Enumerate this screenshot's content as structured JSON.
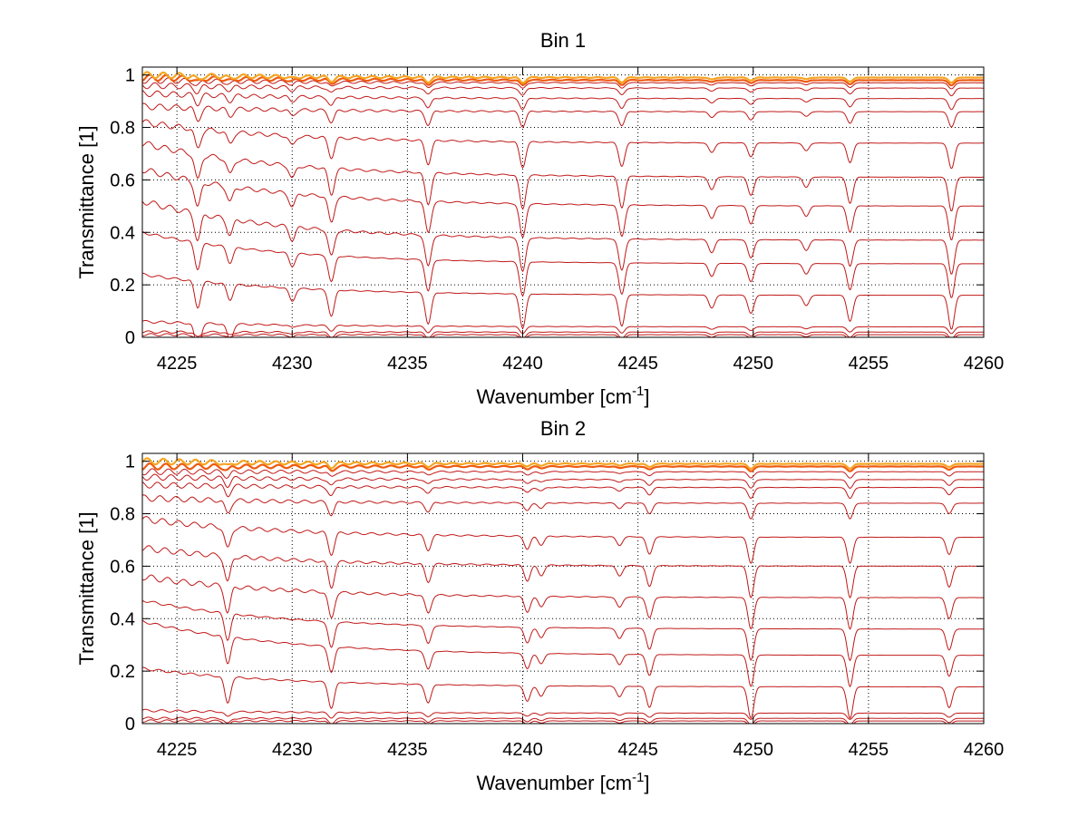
{
  "chart_data": [
    {
      "type": "line",
      "title": "Bin 1",
      "xlabel": "Wavenumber [cm",
      "xlabel_sup": "-1",
      "xlabel_close": "]",
      "ylabel": "Transmittance [1]",
      "xlim": [
        4223.5,
        4260
      ],
      "ylim": [
        0,
        1.03
      ],
      "xticks": [
        "4225",
        "4230",
        "4235",
        "4240",
        "4245",
        "4250",
        "4255",
        "4260"
      ],
      "yticks": [
        "0",
        "0.2",
        "0.4",
        "0.6",
        "0.8",
        "1"
      ],
      "grid": true,
      "line_color": "#c01818",
      "curves": [
        {
          "start": 0.01,
          "end": 0.01
        },
        {
          "start": 0.02,
          "end": 0.02
        },
        {
          "start": 0.06,
          "end": 0.04
        },
        {
          "start": 0.24,
          "end": 0.16
        },
        {
          "start": 0.4,
          "end": 0.28
        },
        {
          "start": 0.52,
          "end": 0.37
        },
        {
          "start": 0.64,
          "end": 0.5
        },
        {
          "start": 0.74,
          "end": 0.61
        },
        {
          "start": 0.82,
          "end": 0.74
        },
        {
          "start": 0.88,
          "end": 0.86
        },
        {
          "start": 0.93,
          "end": 0.91
        },
        {
          "start": 0.96,
          "end": 0.95
        },
        {
          "start": 0.98,
          "end": 0.97
        },
        {
          "start": 0.99,
          "end": 0.98
        },
        {
          "start": 1.0,
          "end": 0.99
        }
      ],
      "absorption_lines": [
        {
          "x": 4225.9,
          "depth": 0.1
        },
        {
          "x": 4227.3,
          "depth": 0.06
        },
        {
          "x": 4230.0,
          "depth": 0.05
        },
        {
          "x": 4231.7,
          "depth": 0.1
        },
        {
          "x": 4235.9,
          "depth": 0.12
        },
        {
          "x": 4240.0,
          "depth": 0.13
        },
        {
          "x": 4244.3,
          "depth": 0.12
        },
        {
          "x": 4248.2,
          "depth": 0.05
        },
        {
          "x": 4249.9,
          "depth": 0.07
        },
        {
          "x": 4252.3,
          "depth": 0.04
        },
        {
          "x": 4254.2,
          "depth": 0.1
        },
        {
          "x": 4258.6,
          "depth": 0.13
        }
      ]
    },
    {
      "type": "line",
      "title": "Bin 2",
      "xlabel": "Wavenumber [cm",
      "xlabel_sup": "-1",
      "xlabel_close": "]",
      "ylabel": "Transmittance [1]",
      "xlim": [
        4223.5,
        4260
      ],
      "ylim": [
        0,
        1.03
      ],
      "xticks": [
        "4225",
        "4230",
        "4235",
        "4240",
        "4245",
        "4250",
        "4255",
        "4260"
      ],
      "yticks": [
        "0",
        "0.2",
        "0.4",
        "0.6",
        "0.8",
        "1"
      ],
      "grid": true,
      "line_color": "#c01818",
      "curves": [
        {
          "start": 0.01,
          "end": 0.01
        },
        {
          "start": 0.02,
          "end": 0.02
        },
        {
          "start": 0.05,
          "end": 0.04
        },
        {
          "start": 0.21,
          "end": 0.14
        },
        {
          "start": 0.39,
          "end": 0.26
        },
        {
          "start": 0.47,
          "end": 0.36
        },
        {
          "start": 0.56,
          "end": 0.48
        },
        {
          "start": 0.67,
          "end": 0.6
        },
        {
          "start": 0.78,
          "end": 0.71
        },
        {
          "start": 0.86,
          "end": 0.84
        },
        {
          "start": 0.91,
          "end": 0.9
        },
        {
          "start": 0.94,
          "end": 0.93
        },
        {
          "start": 0.96,
          "end": 0.96
        },
        {
          "start": 0.98,
          "end": 0.98
        },
        {
          "start": 1.0,
          "end": 0.99
        }
      ],
      "absorption_lines": [
        {
          "x": 4227.2,
          "depth": 0.1
        },
        {
          "x": 4231.7,
          "depth": 0.1
        },
        {
          "x": 4235.9,
          "depth": 0.07
        },
        {
          "x": 4240.2,
          "depth": 0.06
        },
        {
          "x": 4240.8,
          "depth": 0.04
        },
        {
          "x": 4244.2,
          "depth": 0.04
        },
        {
          "x": 4245.5,
          "depth": 0.08
        },
        {
          "x": 4249.9,
          "depth": 0.12
        },
        {
          "x": 4254.2,
          "depth": 0.12
        },
        {
          "x": 4258.5,
          "depth": 0.08
        }
      ]
    }
  ]
}
